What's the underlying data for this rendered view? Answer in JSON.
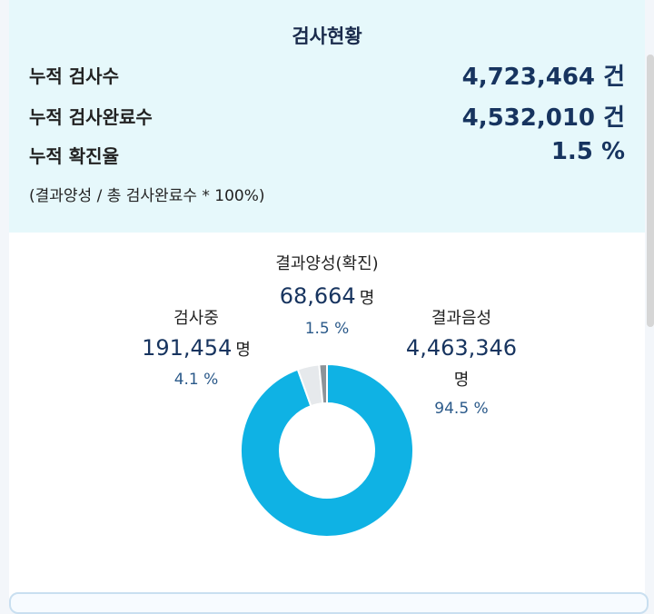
{
  "summary": {
    "title": "검사현황",
    "rows": [
      {
        "label": "누적 검사수",
        "value": "4,723,464 건"
      },
      {
        "label": "누적 검사완료수",
        "value": "4,532,010 건"
      },
      {
        "label": "누적 확진율",
        "value": "1.5 %"
      }
    ],
    "note": "(결과양성 / 총 검사완료수 * 100%)"
  },
  "labels": {
    "positive": {
      "name": "결과양성(확진)",
      "count": "68,664",
      "unit": "명",
      "pct": "1.5 %"
    },
    "testing": {
      "name": "검사중",
      "count": "191,454",
      "unit": "명",
      "pct": "4.1 %"
    },
    "negative": {
      "name": "결과음성",
      "count": "4,463,346",
      "unit": "명",
      "pct": "94.5 %"
    }
  },
  "chart_data": {
    "type": "pie",
    "donut": true,
    "slices": [
      {
        "name": "결과음성",
        "value": 4463346,
        "percent": 94.5,
        "color": "#0fb2e4"
      },
      {
        "name": "검사중",
        "value": 191454,
        "percent": 4.1,
        "color": "#e6e9ec"
      },
      {
        "name": "결과양성(확진)",
        "value": 68664,
        "percent": 1.5,
        "color": "#8d9398"
      }
    ]
  }
}
